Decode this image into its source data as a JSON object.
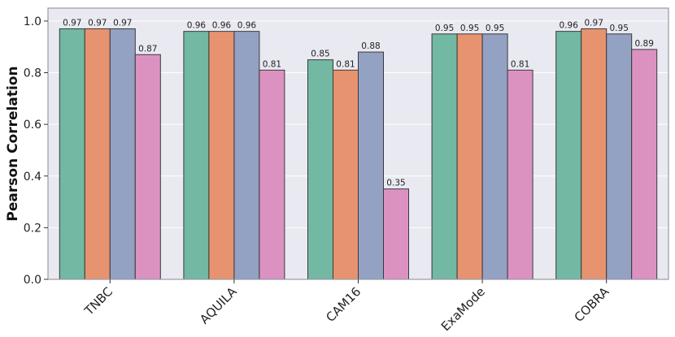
{
  "chart_data": {
    "type": "bar",
    "title": "",
    "xlabel": "",
    "ylabel": "Pearson Correlation",
    "ylim": [
      0,
      1.05
    ],
    "yticks": [
      "0.0",
      "0.2",
      "0.4",
      "0.6",
      "0.8",
      "1.0"
    ],
    "grid": true,
    "legend": "none",
    "background": "#e9e9f1",
    "categories": [
      "TNBC",
      "AQUILA",
      "CAM16",
      "ExaMode",
      "COBRA"
    ],
    "series": [
      {
        "color": "#72b8a2",
        "values": [
          0.97,
          0.96,
          0.85,
          0.95,
          0.96
        ],
        "labels": [
          "0.97",
          "0.96",
          "0.85",
          "0.95",
          "0.96"
        ]
      },
      {
        "color": "#e8936f",
        "values": [
          0.97,
          0.96,
          0.81,
          0.95,
          0.97
        ],
        "labels": [
          "0.97",
          "0.96",
          "0.81",
          "0.95",
          "0.97"
        ]
      },
      {
        "color": "#93a1c3",
        "values": [
          0.97,
          0.96,
          0.88,
          0.95,
          0.95
        ],
        "labels": [
          "0.97",
          "0.96",
          "0.88",
          "0.95",
          "0.95"
        ]
      },
      {
        "color": "#dc92c1",
        "values": [
          0.87,
          0.81,
          0.35,
          0.81,
          0.89
        ],
        "labels": [
          "0.87",
          "0.81",
          "0.35",
          "0.81",
          "0.89"
        ]
      }
    ]
  }
}
